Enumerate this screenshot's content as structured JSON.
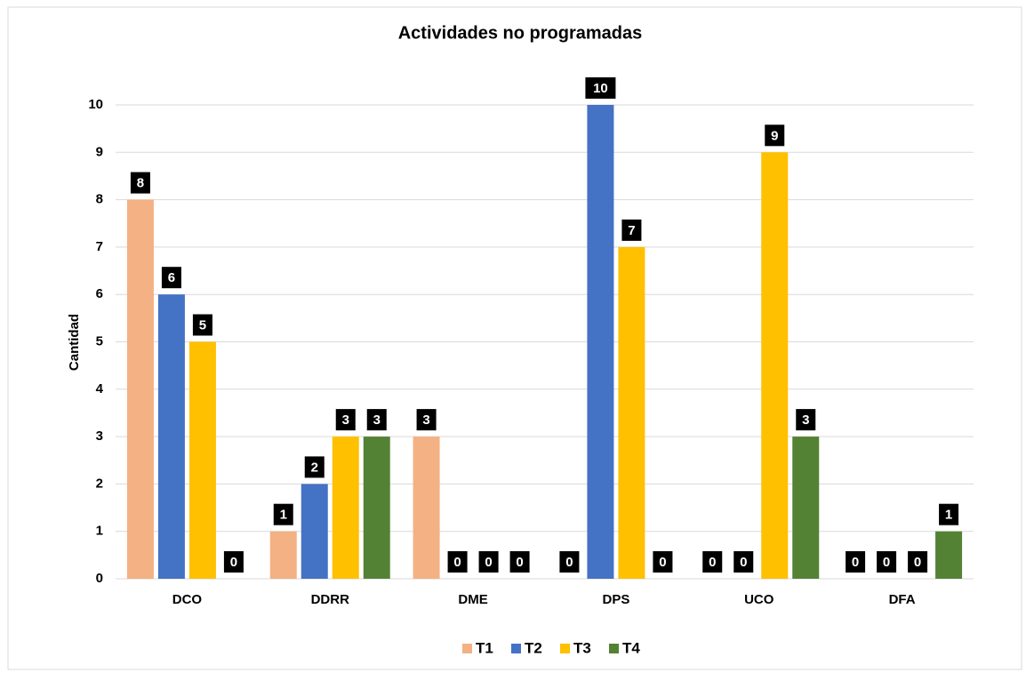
{
  "chart_data": {
    "type": "bar",
    "title": "Actividades no programadas",
    "y_label": "Cantidad",
    "categories": [
      "DCO",
      "DDRR",
      "DME",
      "DPS",
      "UCO",
      "DFA"
    ],
    "series": [
      {
        "name": "T1",
        "color": "#f4b183",
        "values": [
          8,
          1,
          3,
          0,
          0,
          0
        ]
      },
      {
        "name": "T2",
        "color": "#4472c4",
        "values": [
          6,
          2,
          0,
          10,
          0,
          0
        ]
      },
      {
        "name": "T3",
        "color": "#ffc000",
        "values": [
          5,
          3,
          0,
          7,
          9,
          0
        ]
      },
      {
        "name": "T4",
        "color": "#548235",
        "values": [
          0,
          3,
          0,
          0,
          3,
          1
        ]
      }
    ],
    "ylim": [
      0,
      10
    ],
    "yticks": [
      0,
      1,
      2,
      3,
      4,
      5,
      6,
      7,
      8,
      9,
      10
    ],
    "grid": true,
    "legend": "bottom"
  }
}
